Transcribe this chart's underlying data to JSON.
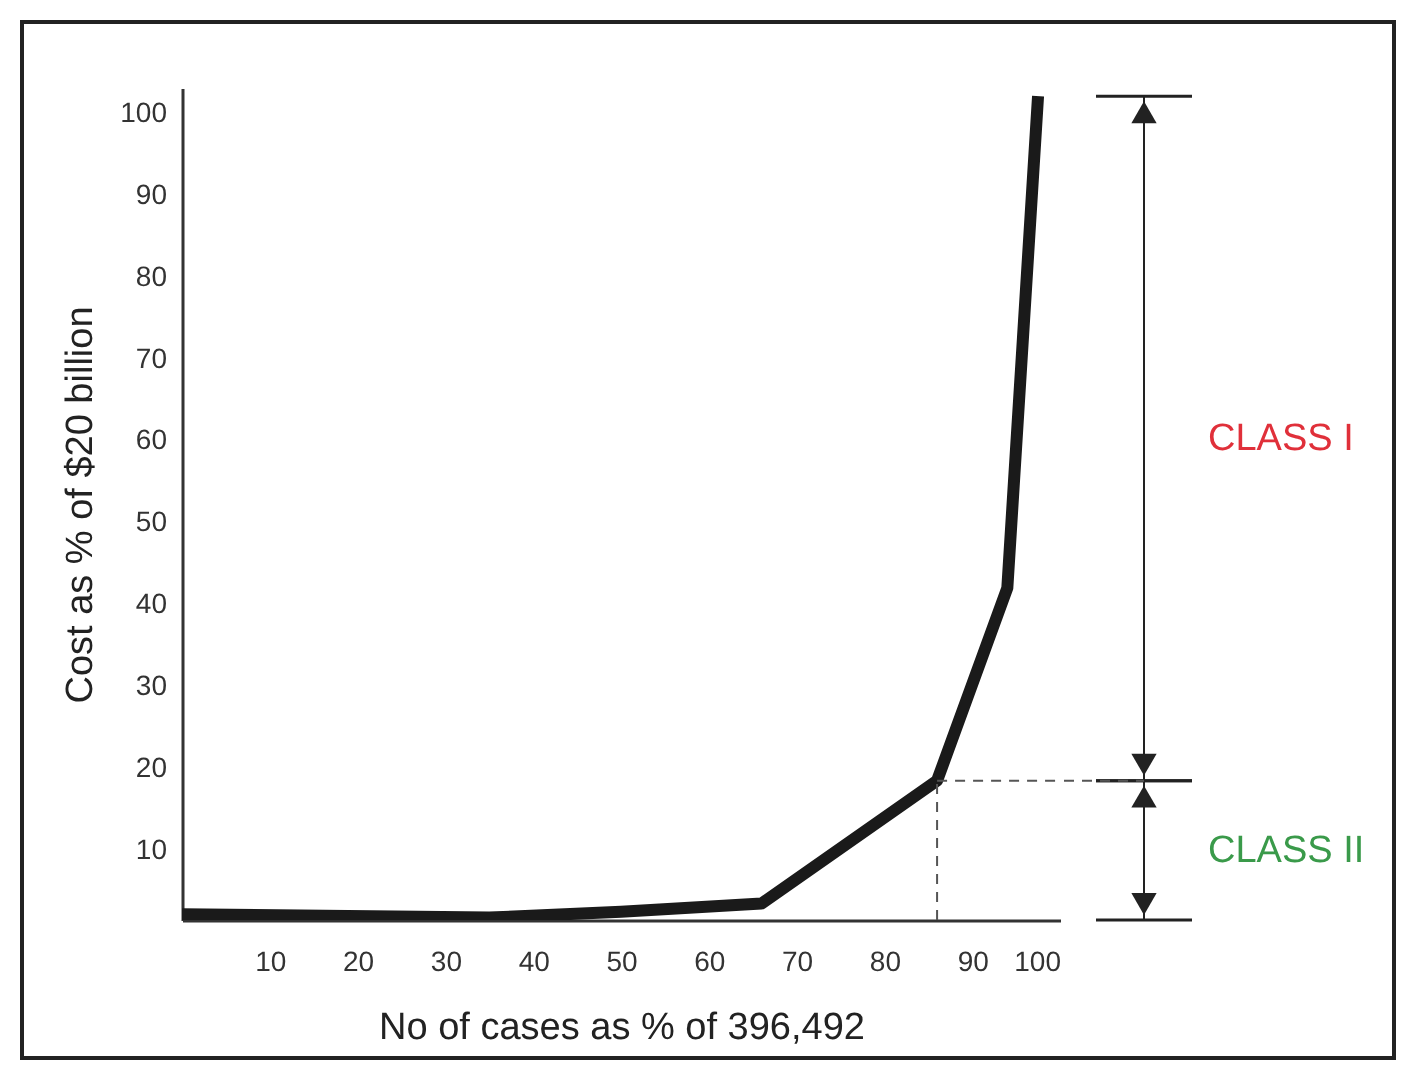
{
  "chart_data": {
    "type": "line",
    "xlabel": "No of cases as % of 396,492",
    "ylabel": "Cost as % of $20 billion",
    "x": [
      0,
      35,
      50,
      66,
      86,
      94,
      97.5
    ],
    "series": [
      {
        "color": "#1a1a1a",
        "values": [
          2.2,
          1.8,
          2.5,
          3.5,
          18.5,
          42,
          102
        ]
      }
    ],
    "xlim": [
      0,
      100
    ],
    "xticks": [
      10,
      20,
      30,
      40,
      50,
      60,
      70,
      80,
      90,
      100
    ],
    "ylim": [
      1.5,
      103
    ],
    "yticks": [
      10,
      20,
      30,
      40,
      50,
      60,
      70,
      80,
      90,
      100
    ],
    "grid": false,
    "marker": "none",
    "line_style": "solid",
    "ref_lines": [
      {
        "axis": "x",
        "value": 86,
        "color": "#555555",
        "line_style": "dashed"
      },
      {
        "axis": "y",
        "value": 18.5,
        "color": "#555555",
        "line_style": "dashed"
      }
    ],
    "annotations": [
      "CLASS I",
      "CLASS II"
    ]
  }
}
